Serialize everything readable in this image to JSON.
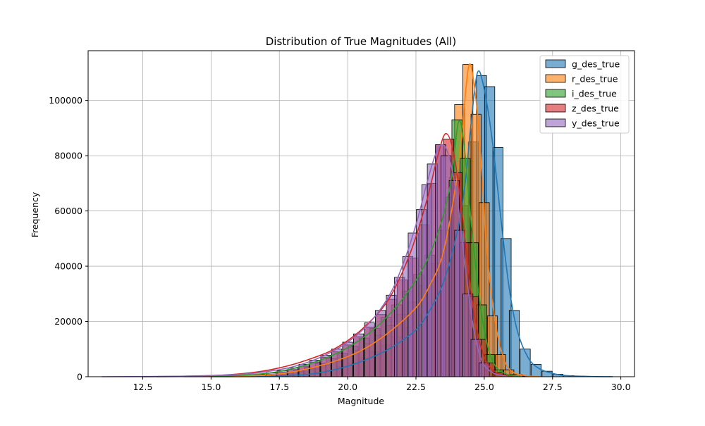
{
  "chart_data": {
    "type": "histogram",
    "title": "Distribution of True Magnitudes (All)",
    "xlabel": "Magnitude",
    "ylabel": "Frequency",
    "xlim": [
      10.5,
      30.5
    ],
    "ylim": [
      0,
      118000
    ],
    "xticks": [
      12.5,
      15.0,
      17.5,
      20.0,
      22.5,
      25.0,
      27.5,
      30.0
    ],
    "xtick_labels": [
      "12.5",
      "15.0",
      "17.5",
      "20.0",
      "22.5",
      "25.0",
      "27.5",
      "30.0"
    ],
    "yticks": [
      0,
      20000,
      40000,
      60000,
      80000,
      100000
    ],
    "ytick_labels": [
      "0",
      "20000",
      "40000",
      "60000",
      "80000",
      "100000"
    ],
    "grid": true,
    "legend_position": "top-right",
    "bin_width": 0.37,
    "series": [
      {
        "name": "g_des_true",
        "color": "#1f77b4",
        "bins": [
          [
            17.8,
            300
          ],
          [
            18.2,
            600
          ],
          [
            18.6,
            1000
          ],
          [
            19.0,
            1600
          ],
          [
            19.4,
            2500
          ],
          [
            19.8,
            3600
          ],
          [
            20.2,
            5000
          ],
          [
            20.6,
            6800
          ],
          [
            21.0,
            9000
          ],
          [
            21.4,
            11500
          ],
          [
            21.8,
            14500
          ],
          [
            22.2,
            18000
          ],
          [
            22.6,
            22500
          ],
          [
            23.0,
            28000
          ],
          [
            23.4,
            36000
          ],
          [
            23.8,
            48000
          ],
          [
            24.2,
            62000
          ],
          [
            24.6,
            85000
          ],
          [
            24.9,
            109000
          ],
          [
            25.2,
            105000
          ],
          [
            25.5,
            83000
          ],
          [
            25.8,
            50000
          ],
          [
            26.1,
            24000
          ],
          [
            26.5,
            10000
          ],
          [
            26.9,
            4500
          ],
          [
            27.3,
            2000
          ],
          [
            27.7,
            900
          ],
          [
            28.1,
            400
          ],
          [
            28.5,
            200
          ],
          [
            29.0,
            100
          ]
        ],
        "kde": [
          [
            15.0,
            0
          ],
          [
            17.0,
            100
          ],
          [
            18.5,
            800
          ],
          [
            19.5,
            2500
          ],
          [
            20.5,
            5500
          ],
          [
            21.5,
            10000
          ],
          [
            22.5,
            17000
          ],
          [
            23.0,
            24000
          ],
          [
            23.5,
            34000
          ],
          [
            24.0,
            52000
          ],
          [
            24.3,
            70000
          ],
          [
            24.5,
            90000
          ],
          [
            24.75,
            110000
          ],
          [
            25.0,
            104000
          ],
          [
            25.3,
            85000
          ],
          [
            25.6,
            58000
          ],
          [
            25.9,
            33000
          ],
          [
            26.2,
            17000
          ],
          [
            26.6,
            7000
          ],
          [
            27.0,
            3000
          ],
          [
            27.5,
            1200
          ],
          [
            28.0,
            400
          ],
          [
            29.0,
            80
          ],
          [
            29.7,
            10
          ]
        ]
      },
      {
        "name": "r_des_true",
        "color": "#ff7f0e",
        "bins": [
          [
            17.6,
            500
          ],
          [
            18.0,
            1000
          ],
          [
            18.4,
            1800
          ],
          [
            18.8,
            2800
          ],
          [
            19.2,
            4000
          ],
          [
            19.6,
            5500
          ],
          [
            20.0,
            7500
          ],
          [
            20.4,
            9500
          ],
          [
            20.8,
            12000
          ],
          [
            21.2,
            15000
          ],
          [
            21.6,
            18500
          ],
          [
            22.0,
            22500
          ],
          [
            22.4,
            27000
          ],
          [
            22.8,
            33000
          ],
          [
            23.2,
            41000
          ],
          [
            23.6,
            53000
          ],
          [
            23.9,
            72000
          ],
          [
            24.1,
            98500
          ],
          [
            24.4,
            113000
          ],
          [
            24.7,
            95000
          ],
          [
            25.0,
            63000
          ],
          [
            25.3,
            22000
          ],
          [
            25.6,
            8000
          ],
          [
            25.9,
            2500
          ],
          [
            26.2,
            800
          ],
          [
            26.6,
            200
          ]
        ],
        "kde": [
          [
            14.0,
            0
          ],
          [
            16.0,
            200
          ],
          [
            17.5,
            1000
          ],
          [
            18.5,
            2800
          ],
          [
            19.5,
            5500
          ],
          [
            20.5,
            9500
          ],
          [
            21.5,
            16000
          ],
          [
            22.5,
            25000
          ],
          [
            23.0,
            33000
          ],
          [
            23.5,
            45000
          ],
          [
            24.0,
            72000
          ],
          [
            24.2,
            90000
          ],
          [
            24.45,
            113000
          ],
          [
            24.7,
            100000
          ],
          [
            24.9,
            75000
          ],
          [
            25.1,
            45000
          ],
          [
            25.4,
            20000
          ],
          [
            25.7,
            7000
          ],
          [
            26.0,
            2000
          ],
          [
            26.5,
            400
          ],
          [
            27.0,
            50
          ]
        ]
      },
      {
        "name": "i_des_true",
        "color": "#2ca02c",
        "bins": [
          [
            17.4,
            700
          ],
          [
            17.8,
            1300
          ],
          [
            18.2,
            2200
          ],
          [
            18.6,
            3400
          ],
          [
            19.0,
            4800
          ],
          [
            19.4,
            6500
          ],
          [
            19.8,
            8500
          ],
          [
            20.2,
            11000
          ],
          [
            20.6,
            14000
          ],
          [
            21.0,
            17500
          ],
          [
            21.4,
            21500
          ],
          [
            21.8,
            26000
          ],
          [
            22.2,
            31000
          ],
          [
            22.6,
            37000
          ],
          [
            23.0,
            44000
          ],
          [
            23.4,
            53000
          ],
          [
            23.7,
            65000
          ],
          [
            24.0,
            93000
          ],
          [
            24.3,
            79000
          ],
          [
            24.6,
            48500
          ],
          [
            24.9,
            26000
          ],
          [
            25.2,
            8000
          ],
          [
            25.5,
            2500
          ],
          [
            25.8,
            800
          ]
        ],
        "kde": [
          [
            13.0,
            0
          ],
          [
            15.5,
            300
          ],
          [
            17.0,
            1200
          ],
          [
            18.0,
            3000
          ],
          [
            19.0,
            6000
          ],
          [
            20.0,
            10500
          ],
          [
            21.0,
            17500
          ],
          [
            22.0,
            28000
          ],
          [
            22.8,
            40000
          ],
          [
            23.4,
            55000
          ],
          [
            23.8,
            72000
          ],
          [
            24.05,
            92000
          ],
          [
            24.25,
            85000
          ],
          [
            24.5,
            58000
          ],
          [
            24.8,
            30000
          ],
          [
            25.1,
            12000
          ],
          [
            25.4,
            4000
          ],
          [
            25.8,
            1000
          ],
          [
            26.3,
            100
          ]
        ]
      },
      {
        "name": "z_des_true",
        "color": "#d62728",
        "bins": [
          [
            17.2,
            900
          ],
          [
            17.6,
            1600
          ],
          [
            18.0,
            2600
          ],
          [
            18.4,
            3800
          ],
          [
            18.8,
            5200
          ],
          [
            19.2,
            7000
          ],
          [
            19.6,
            9000
          ],
          [
            20.0,
            11500
          ],
          [
            20.4,
            14500
          ],
          [
            20.8,
            18000
          ],
          [
            21.2,
            22500
          ],
          [
            21.6,
            28000
          ],
          [
            22.0,
            35000
          ],
          [
            22.4,
            43000
          ],
          [
            22.8,
            55000
          ],
          [
            23.1,
            70000
          ],
          [
            23.4,
            84000
          ],
          [
            23.7,
            86000
          ],
          [
            24.0,
            74000
          ],
          [
            24.3,
            48500
          ],
          [
            24.6,
            29000
          ],
          [
            24.9,
            13500
          ],
          [
            25.2,
            5000
          ],
          [
            25.5,
            1500
          ]
        ],
        "kde": [
          [
            12.5,
            0
          ],
          [
            15.0,
            400
          ],
          [
            16.5,
            1500
          ],
          [
            17.5,
            3200
          ],
          [
            18.5,
            6000
          ],
          [
            19.5,
            10000
          ],
          [
            20.5,
            17000
          ],
          [
            21.5,
            28000
          ],
          [
            22.3,
            45000
          ],
          [
            22.9,
            64000
          ],
          [
            23.3,
            80000
          ],
          [
            23.6,
            88000
          ],
          [
            23.9,
            80000
          ],
          [
            24.2,
            58000
          ],
          [
            24.5,
            32000
          ],
          [
            24.8,
            14000
          ],
          [
            25.1,
            5000
          ],
          [
            25.5,
            1200
          ],
          [
            26.0,
            200
          ]
        ]
      },
      {
        "name": "y_des_true",
        "color": "#9467bd",
        "bins": [
          [
            16.8,
            800
          ],
          [
            17.2,
            1400
          ],
          [
            17.6,
            2200
          ],
          [
            18.0,
            3200
          ],
          [
            18.4,
            4500
          ],
          [
            18.8,
            6000
          ],
          [
            19.2,
            7800
          ],
          [
            19.6,
            10000
          ],
          [
            20.0,
            12500
          ],
          [
            20.4,
            15500
          ],
          [
            20.8,
            19500
          ],
          [
            21.2,
            24000
          ],
          [
            21.6,
            29500
          ],
          [
            21.9,
            36000
          ],
          [
            22.2,
            43500
          ],
          [
            22.4,
            52000
          ],
          [
            22.7,
            60500
          ],
          [
            22.9,
            69500
          ],
          [
            23.1,
            77000
          ],
          [
            23.4,
            84000
          ],
          [
            23.6,
            80000
          ],
          [
            23.9,
            71000
          ],
          [
            24.1,
            53000
          ],
          [
            24.4,
            30000
          ],
          [
            24.7,
            13500
          ],
          [
            25.0,
            5000
          ]
        ],
        "kde": [
          [
            11.0,
            0
          ],
          [
            14.0,
            200
          ],
          [
            16.0,
            800
          ],
          [
            17.0,
            1800
          ],
          [
            18.0,
            3600
          ],
          [
            19.0,
            7000
          ],
          [
            20.0,
            12500
          ],
          [
            20.8,
            19500
          ],
          [
            21.5,
            29000
          ],
          [
            22.0,
            40000
          ],
          [
            22.5,
            55000
          ],
          [
            22.9,
            70000
          ],
          [
            23.2,
            80000
          ],
          [
            23.45,
            84000
          ],
          [
            23.7,
            80000
          ],
          [
            24.0,
            65000
          ],
          [
            24.3,
            40000
          ],
          [
            24.6,
            18000
          ],
          [
            24.9,
            6000
          ],
          [
            25.3,
            1500
          ],
          [
            25.8,
            200
          ]
        ]
      }
    ]
  }
}
